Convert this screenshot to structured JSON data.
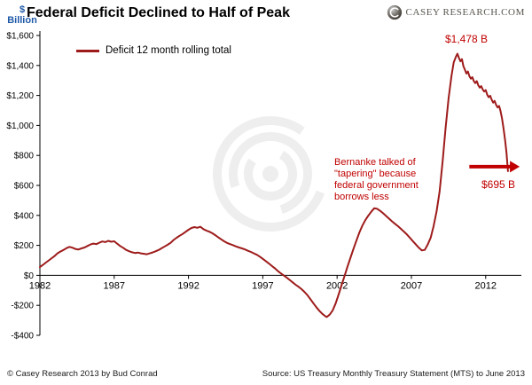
{
  "header": {
    "brand": "CASEY RESEARCH.COM"
  },
  "footer": {
    "left": "© Casey Research 2013 by Bud Conrad",
    "right": "Source: US Treasury Monthly Treasury Statement (MTS) to June 2013"
  },
  "colors": {
    "line": "#9e1b1b",
    "annotation": "#c00000",
    "axis": "#000000",
    "ylabel_blue": "#1f5aa8"
  },
  "chart_data": {
    "type": "line",
    "title": "Federal Deficit Declined to Half of Peak",
    "ylabel": "$ Billion",
    "ylabel_lines": [
      "$",
      "Billion"
    ],
    "xlim": [
      1982,
      2014.4
    ],
    "ylim": [
      -400,
      1600
    ],
    "grid": false,
    "legend_position": "top-left-inside",
    "x_ticks": [
      {
        "v": 1982,
        "label": "1982"
      },
      {
        "v": 1987,
        "label": "1987"
      },
      {
        "v": 1992,
        "label": "1992"
      },
      {
        "v": 1997,
        "label": "1997"
      },
      {
        "v": 2002,
        "label": "2002"
      },
      {
        "v": 2007,
        "label": "2007"
      },
      {
        "v": 2012,
        "label": "2012"
      }
    ],
    "y_ticks": [
      {
        "v": 1600,
        "label": "$1,600"
      },
      {
        "v": 1400,
        "label": "$1,400"
      },
      {
        "v": 1200,
        "label": "$1,200"
      },
      {
        "v": 1000,
        "label": "$1,000"
      },
      {
        "v": 800,
        "label": "$800"
      },
      {
        "v": 600,
        "label": "$600"
      },
      {
        "v": 400,
        "label": "$400"
      },
      {
        "v": 200,
        "label": "$200"
      },
      {
        "v": 0,
        "label": "$0"
      },
      {
        "v": -200,
        "label": "-$200"
      },
      {
        "v": -400,
        "label": "-$400"
      }
    ],
    "series": [
      {
        "name": "Deficit 12 month rolling total",
        "color": "#9e1b1b",
        "points": [
          [
            1982.0,
            55
          ],
          [
            1982.2,
            70
          ],
          [
            1982.4,
            85
          ],
          [
            1982.6,
            100
          ],
          [
            1982.8,
            115
          ],
          [
            1983.0,
            130
          ],
          [
            1983.2,
            148
          ],
          [
            1983.4,
            160
          ],
          [
            1983.6,
            170
          ],
          [
            1983.8,
            182
          ],
          [
            1984.0,
            190
          ],
          [
            1984.2,
            184
          ],
          [
            1984.4,
            176
          ],
          [
            1984.6,
            173
          ],
          [
            1984.8,
            180
          ],
          [
            1985.0,
            186
          ],
          [
            1985.2,
            196
          ],
          [
            1985.4,
            206
          ],
          [
            1985.6,
            212
          ],
          [
            1985.8,
            208
          ],
          [
            1986.0,
            218
          ],
          [
            1986.2,
            226
          ],
          [
            1986.4,
            222
          ],
          [
            1986.6,
            230
          ],
          [
            1986.8,
            224
          ],
          [
            1987.0,
            227
          ],
          [
            1987.2,
            212
          ],
          [
            1987.4,
            196
          ],
          [
            1987.6,
            184
          ],
          [
            1987.8,
            170
          ],
          [
            1988.0,
            161
          ],
          [
            1988.2,
            154
          ],
          [
            1988.4,
            149
          ],
          [
            1988.6,
            152
          ],
          [
            1988.8,
            147
          ],
          [
            1989.0,
            144
          ],
          [
            1989.2,
            141
          ],
          [
            1989.4,
            147
          ],
          [
            1989.6,
            153
          ],
          [
            1989.8,
            161
          ],
          [
            1990.0,
            170
          ],
          [
            1990.2,
            181
          ],
          [
            1990.4,
            193
          ],
          [
            1990.6,
            204
          ],
          [
            1990.8,
            217
          ],
          [
            1991.0,
            236
          ],
          [
            1991.2,
            251
          ],
          [
            1991.4,
            264
          ],
          [
            1991.6,
            276
          ],
          [
            1991.8,
            290
          ],
          [
            1992.0,
            304
          ],
          [
            1992.2,
            316
          ],
          [
            1992.4,
            322
          ],
          [
            1992.6,
            317
          ],
          [
            1992.8,
            324
          ],
          [
            1993.0,
            308
          ],
          [
            1993.2,
            299
          ],
          [
            1993.4,
            291
          ],
          [
            1993.6,
            281
          ],
          [
            1993.8,
            268
          ],
          [
            1994.0,
            254
          ],
          [
            1994.2,
            240
          ],
          [
            1994.4,
            227
          ],
          [
            1994.6,
            216
          ],
          [
            1994.8,
            208
          ],
          [
            1995.0,
            201
          ],
          [
            1995.2,
            193
          ],
          [
            1995.4,
            186
          ],
          [
            1995.6,
            180
          ],
          [
            1995.8,
            173
          ],
          [
            1996.0,
            164
          ],
          [
            1996.2,
            156
          ],
          [
            1996.4,
            147
          ],
          [
            1996.6,
            137
          ],
          [
            1996.8,
            125
          ],
          [
            1997.0,
            110
          ],
          [
            1997.2,
            95
          ],
          [
            1997.4,
            80
          ],
          [
            1997.6,
            64
          ],
          [
            1997.8,
            48
          ],
          [
            1998.0,
            30
          ],
          [
            1998.2,
            14
          ],
          [
            1998.4,
            0
          ],
          [
            1998.6,
            -14
          ],
          [
            1998.8,
            -30
          ],
          [
            1999.0,
            -46
          ],
          [
            1999.2,
            -62
          ],
          [
            1999.4,
            -76
          ],
          [
            1999.6,
            -92
          ],
          [
            1999.8,
            -110
          ],
          [
            2000.0,
            -132
          ],
          [
            2000.2,
            -158
          ],
          [
            2000.4,
            -186
          ],
          [
            2000.6,
            -212
          ],
          [
            2000.8,
            -236
          ],
          [
            2001.0,
            -256
          ],
          [
            2001.2,
            -272
          ],
          [
            2001.3,
            -278
          ],
          [
            2001.5,
            -262
          ],
          [
            2001.7,
            -234
          ],
          [
            2001.9,
            -188
          ],
          [
            2002.1,
            -128
          ],
          [
            2002.3,
            -66
          ],
          [
            2002.5,
            -4
          ],
          [
            2002.7,
            58
          ],
          [
            2002.9,
            118
          ],
          [
            2003.1,
            176
          ],
          [
            2003.3,
            232
          ],
          [
            2003.5,
            286
          ],
          [
            2003.7,
            332
          ],
          [
            2003.9,
            368
          ],
          [
            2004.1,
            398
          ],
          [
            2004.3,
            424
          ],
          [
            2004.5,
            448
          ],
          [
            2004.7,
            444
          ],
          [
            2004.9,
            430
          ],
          [
            2005.1,
            414
          ],
          [
            2005.3,
            396
          ],
          [
            2005.5,
            378
          ],
          [
            2005.7,
            360
          ],
          [
            2005.9,
            344
          ],
          [
            2006.1,
            328
          ],
          [
            2006.3,
            310
          ],
          [
            2006.5,
            292
          ],
          [
            2006.7,
            272
          ],
          [
            2006.9,
            250
          ],
          [
            2007.1,
            228
          ],
          [
            2007.3,
            206
          ],
          [
            2007.5,
            184
          ],
          [
            2007.7,
            166
          ],
          [
            2007.9,
            170
          ],
          [
            2008.1,
            206
          ],
          [
            2008.3,
            252
          ],
          [
            2008.5,
            330
          ],
          [
            2008.7,
            430
          ],
          [
            2008.9,
            560
          ],
          [
            2009.1,
            760
          ],
          [
            2009.3,
            980
          ],
          [
            2009.5,
            1180
          ],
          [
            2009.7,
            1330
          ],
          [
            2009.85,
            1420
          ],
          [
            2010.0,
            1460
          ],
          [
            2010.1,
            1478
          ],
          [
            2010.2,
            1450
          ],
          [
            2010.3,
            1428
          ],
          [
            2010.4,
            1442
          ],
          [
            2010.5,
            1396
          ],
          [
            2010.6,
            1372
          ],
          [
            2010.7,
            1346
          ],
          [
            2010.8,
            1360
          ],
          [
            2010.9,
            1330
          ],
          [
            2011.0,
            1312
          ],
          [
            2011.1,
            1322
          ],
          [
            2011.2,
            1296
          ],
          [
            2011.3,
            1282
          ],
          [
            2011.4,
            1296
          ],
          [
            2011.5,
            1268
          ],
          [
            2011.6,
            1252
          ],
          [
            2011.7,
            1262
          ],
          [
            2011.8,
            1240
          ],
          [
            2011.9,
            1226
          ],
          [
            2012.0,
            1236
          ],
          [
            2012.1,
            1205
          ],
          [
            2012.2,
            1188
          ],
          [
            2012.3,
            1198
          ],
          [
            2012.4,
            1172
          ],
          [
            2012.5,
            1152
          ],
          [
            2012.6,
            1164
          ],
          [
            2012.7,
            1138
          ],
          [
            2012.8,
            1120
          ],
          [
            2012.9,
            1130
          ],
          [
            2013.0,
            1096
          ],
          [
            2013.1,
            1046
          ],
          [
            2013.2,
            980
          ],
          [
            2013.3,
            905
          ],
          [
            2013.4,
            820
          ],
          [
            2013.5,
            695
          ]
        ]
      }
    ],
    "annotations": {
      "peak_label": "$1,478 B",
      "end_label": "$695 B",
      "note_lines": [
        "Bernanke talked of",
        "\"tapering\" because",
        "federal government",
        "borrows less"
      ],
      "arrow": {
        "from_year": 2010.9,
        "to_year": 2013.75,
        "value": 725
      }
    }
  }
}
